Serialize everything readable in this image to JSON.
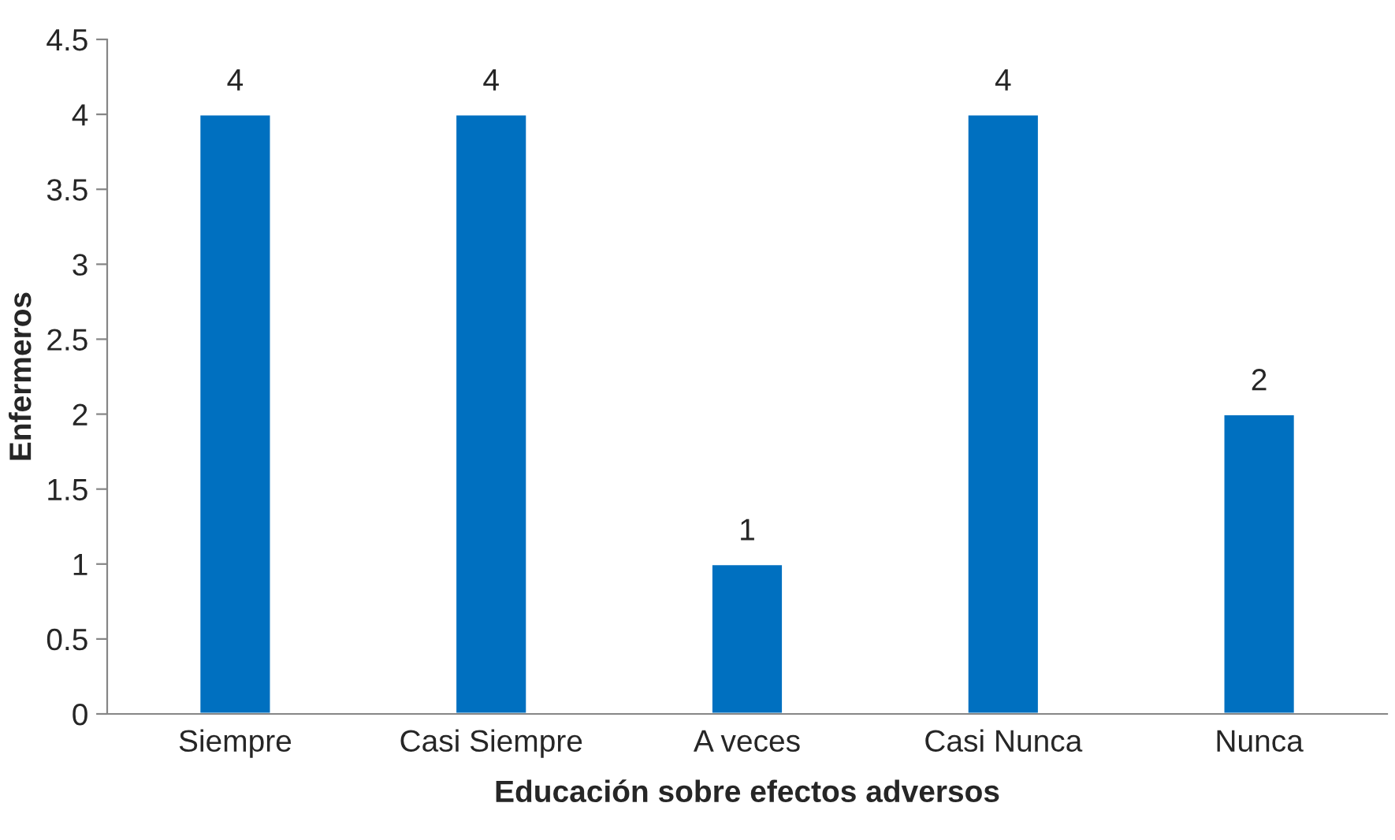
{
  "chart_data": {
    "type": "bar",
    "xlabel": "Educación sobre efectos adversos",
    "ylabel": "Enfermeros",
    "categories": [
      "Siempre",
      "Casi Siempre",
      "A veces",
      "Casi Nunca",
      "Nunca"
    ],
    "values": [
      4,
      4,
      1,
      4,
      2
    ],
    "color": "#0070c0",
    "ylim": [
      0,
      4.5
    ],
    "yticks": [
      0,
      0.5,
      1,
      1.5,
      2,
      2.5,
      3,
      3.5,
      4,
      4.5
    ],
    "grid": false,
    "data_labels": true
  }
}
